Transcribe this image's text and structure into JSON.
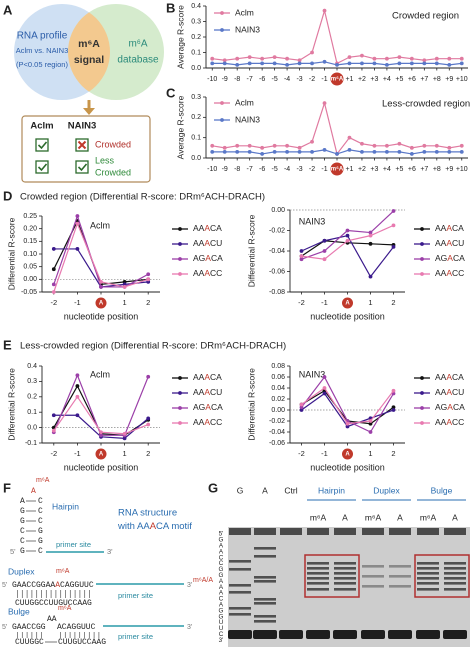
{
  "panel_labels": [
    "A",
    "B",
    "C",
    "D",
    "E",
    "F",
    "G"
  ],
  "panel_a": {
    "profile": [
      "RNA profile",
      "Aclm vs. NAIN3",
      "(P<0.05 region)"
    ],
    "signal": [
      "m⁶A",
      "signal"
    ],
    "database": [
      "m⁶A",
      "database"
    ],
    "table_headers": [
      "Aclm",
      "NAIN3"
    ],
    "table_rows": [
      [
        "Crowded"
      ],
      [
        "Less",
        "Crowded"
      ]
    ]
  },
  "headings": [
    "Crowded region (Differential R-score: DRm⁶ACH-DRACH)",
    "Less-crowded region (Differential R-score: DRm⁶ACH-DRACH)"
  ],
  "chart_data": [
    {
      "type": "line",
      "annotation": "Crowded region",
      "annotation_color": "#9b2335",
      "ylabel": "Average R-score",
      "categories": [
        "-10",
        "-9",
        "-8",
        "-7",
        "-6",
        "-5",
        "-4",
        "-3",
        "-2",
        "-1",
        "m⁶A",
        "+1",
        "+2",
        "+3",
        "+4",
        "+5",
        "+6",
        "+7",
        "+8",
        "+9",
        "+10"
      ],
      "series": [
        {
          "name": "Aclm",
          "color": "#e07aa0",
          "values": [
            0.06,
            0.05,
            0.06,
            0.07,
            0.06,
            0.07,
            0.06,
            0.05,
            0.1,
            0.37,
            0.03,
            0.07,
            0.08,
            0.06,
            0.06,
            0.07,
            0.06,
            0.05,
            0.06,
            0.06,
            0.06
          ]
        },
        {
          "name": "NAIN3",
          "color": "#5a78c8",
          "values": [
            0.03,
            0.03,
            0.02,
            0.03,
            0.03,
            0.03,
            0.02,
            0.03,
            0.03,
            0.04,
            0.02,
            0.03,
            0.03,
            0.03,
            0.02,
            0.03,
            0.03,
            0.03,
            0.03,
            0.02,
            0.03
          ]
        }
      ],
      "ylim": [
        0,
        0.4
      ],
      "yticks": [
        {
          "value": 0,
          "label": "0.0"
        },
        0.1,
        0.2,
        0.3,
        0.4
      ]
    },
    {
      "type": "line",
      "annotation": "Less-crowded region",
      "annotation_color": "#3a8a3a",
      "ylabel": "Average R-score",
      "categories": [
        "-10",
        "-9",
        "-8",
        "-7",
        "-6",
        "-5",
        "-4",
        "-3",
        "-2",
        "-1",
        "m⁶A",
        "+1",
        "+2",
        "+3",
        "+4",
        "+5",
        "+6",
        "+7",
        "+8",
        "+9",
        "+10"
      ],
      "series": [
        {
          "name": "Aclm",
          "color": "#e07aa0",
          "values": [
            0.06,
            0.05,
            0.06,
            0.06,
            0.05,
            0.06,
            0.06,
            0.05,
            0.08,
            0.27,
            0.02,
            0.1,
            0.07,
            0.06,
            0.06,
            0.07,
            0.05,
            0.06,
            0.06,
            0.05,
            0.06
          ]
        },
        {
          "name": "NAIN3",
          "color": "#5a78c8",
          "values": [
            0.03,
            0.03,
            0.03,
            0.03,
            0.02,
            0.03,
            0.03,
            0.03,
            0.03,
            0.04,
            0.02,
            0.04,
            0.03,
            0.03,
            0.03,
            0.03,
            0.02,
            0.03,
            0.03,
            0.03,
            0.03
          ]
        }
      ],
      "ylim": [
        0,
        0.3
      ],
      "yticks": [
        {
          "value": 0,
          "label": "0.0"
        },
        0.1,
        0.2,
        0.3
      ]
    },
    {
      "type": "line",
      "title": "Aclm",
      "ylabel": "Differential R-score",
      "xlabel": "nucleotide position",
      "categories": [
        "-2",
        "-1",
        "A",
        "1",
        "2"
      ],
      "series": [
        {
          "name": "AAACA",
          "color": "#111111",
          "values": [
            0.04,
            0.23,
            -0.02,
            -0.01,
            0.0
          ]
        },
        {
          "name": "AAACU",
          "color": "#3b1a8c",
          "values": [
            0.12,
            0.12,
            -0.03,
            -0.02,
            -0.01
          ]
        },
        {
          "name": "AGACA",
          "color": "#9b3fa8",
          "values": [
            -0.02,
            0.25,
            -0.03,
            -0.03,
            0.02
          ]
        },
        {
          "name": "AAACC",
          "color": "#e87ab0",
          "values": [
            -0.05,
            0.22,
            -0.01,
            -0.03,
            0.0
          ]
        }
      ],
      "ylim": [
        -0.05,
        0.25
      ],
      "yticks": [
        -0.05,
        {
          "value": 0,
          "label": "0.00"
        },
        0.05,
        {
          "value": 0.1,
          "label": "0.10"
        },
        0.15,
        {
          "value": 0.2,
          "label": "0.20"
        },
        0.25
      ]
    },
    {
      "type": "line",
      "title": "NAIN3",
      "ylabel": "Differential R-score",
      "xlabel": "nucleotide position",
      "categories": [
        "-2",
        "-1",
        "A",
        "1",
        "2"
      ],
      "series": [
        {
          "name": "AAACA",
          "color": "#111111",
          "values": [
            -0.045,
            -0.03,
            -0.032,
            -0.033,
            -0.034
          ]
        },
        {
          "name": "AAACU",
          "color": "#3b1a8c",
          "values": [
            -0.04,
            -0.03,
            -0.025,
            -0.065,
            -0.036
          ]
        },
        {
          "name": "AGACA",
          "color": "#9b3fa8",
          "values": [
            -0.048,
            -0.04,
            -0.02,
            -0.022,
            -0.001
          ]
        },
        {
          "name": "AAACC",
          "color": "#e87ab0",
          "values": [
            -0.045,
            -0.048,
            -0.03,
            -0.025,
            -0.015
          ]
        }
      ],
      "ylim": [
        -0.08,
        0
      ],
      "yticks": [
        -0.08,
        -0.06,
        -0.04,
        -0.02,
        {
          "value": 0,
          "label": "0.00"
        }
      ]
    },
    {
      "type": "line",
      "title": "Aclm",
      "ylabel": "Differential R-score",
      "xlabel": "nucleotide position",
      "categories": [
        "-2",
        "-1",
        "A",
        "1",
        "2"
      ],
      "series": [
        {
          "name": "AAACA",
          "color": "#111111",
          "values": [
            0.0,
            0.27,
            -0.04,
            -0.05,
            0.05
          ]
        },
        {
          "name": "AAACU",
          "color": "#3b1a8c",
          "values": [
            0.08,
            0.08,
            -0.06,
            -0.07,
            0.06
          ]
        },
        {
          "name": "AGACA",
          "color": "#9b3fa8",
          "values": [
            -0.03,
            0.34,
            -0.05,
            -0.05,
            0.33
          ]
        },
        {
          "name": "AAACC",
          "color": "#e87ab0",
          "values": [
            -0.02,
            0.2,
            -0.03,
            -0.04,
            0.02
          ]
        }
      ],
      "ylim": [
        -0.1,
        0.4
      ],
      "yticks": [
        -0.1,
        {
          "value": 0,
          "label": "0.0"
        },
        0.1,
        0.2,
        0.3,
        0.4
      ]
    },
    {
      "type": "line",
      "title": "NAIN3",
      "ylabel": "Differential R-score",
      "xlabel": "nucleotide position",
      "categories": [
        "-2",
        "-1",
        "A",
        "1",
        "2"
      ],
      "series": [
        {
          "name": "AAACA",
          "color": "#111111",
          "values": [
            0.01,
            0.035,
            -0.02,
            -0.025,
            0.005
          ]
        },
        {
          "name": "AAACU",
          "color": "#3b1a8c",
          "values": [
            0.0,
            0.03,
            -0.03,
            -0.015,
            0.0
          ]
        },
        {
          "name": "AGACA",
          "color": "#9b3fa8",
          "values": [
            0.005,
            0.06,
            -0.02,
            -0.04,
            0.03
          ]
        },
        {
          "name": "AAACC",
          "color": "#e87ab0",
          "values": [
            0.01,
            0.04,
            -0.025,
            -0.02,
            0.035
          ]
        }
      ],
      "ylim": [
        -0.06,
        0.08
      ],
      "yticks": [
        -0.06,
        -0.04,
        -0.02,
        {
          "value": 0,
          "label": "0.00"
        },
        0.02,
        0.04,
        0.06,
        0.08
      ]
    }
  ],
  "panel_f": {
    "title": [
      "RNA structure",
      "with AAACA motif"
    ],
    "hairpin": {
      "label": "Hairpin",
      "m6a": "m⁶A",
      "loop": "A",
      "left": [
        "A",
        "G",
        "G",
        "C",
        "C",
        "G"
      ],
      "right": [
        "C",
        "C",
        "C",
        "G",
        "G",
        "C"
      ],
      "five": "5'",
      "three": "3'",
      "primer": "primer site"
    },
    "duplex": {
      "label": "Duplex",
      "m6a": "m⁶A",
      "top": "GAACCGGAAACAGGUUC",
      "bottom": "CUUGGCCUUGUCCAAG",
      "five": "5'",
      "three": "3'",
      "primer": "primer site"
    },
    "bulge": {
      "label": "Bulge",
      "m6a": "m⁶A",
      "top_left": "GAACCGG",
      "bulge": "AA",
      "top_right": "ACAGGUUC",
      "bottom_left": "CUUGGC",
      "bottom_right": "CUUGUCCAAG",
      "five": "5'",
      "three": "3'",
      "primer": "primer site"
    }
  },
  "panel_g": {
    "groups": [
      "Hairpin",
      "Duplex",
      "Bulge"
    ],
    "lanes": [
      "G",
      "A",
      "Ctrl",
      "m⁶A",
      "A",
      "m⁶A",
      "A",
      "m⁶A",
      "A"
    ],
    "sequence": [
      "5'",
      "G",
      "A",
      "A",
      "C",
      "C",
      "G",
      "G",
      "A",
      "A",
      "A",
      "C",
      "A",
      "G",
      "G",
      "U",
      "U",
      "C",
      "3'"
    ],
    "marker": "m⁶A/A"
  }
}
